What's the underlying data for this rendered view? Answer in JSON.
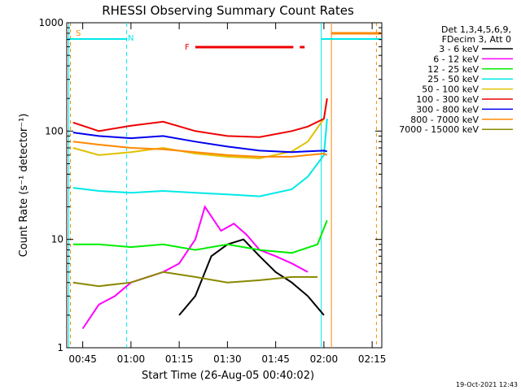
{
  "chart_data": {
    "type": "line",
    "title": "RHESSI Observing Summary Count Rates",
    "xlabel": "Start Time (26-Aug-05 00:40:02)",
    "ylabel": "Count Rate (s⁻¹ detector⁻¹)",
    "y_scale": "log",
    "ylim": [
      1,
      1000
    ],
    "xlim": [
      "00:40:02",
      "02:18:00"
    ],
    "x_ticks": [
      "00:45",
      "01:00",
      "01:15",
      "01:30",
      "01:45",
      "02:00",
      "02:15"
    ],
    "y_ticks": [
      "1",
      "10",
      "100",
      "1000"
    ],
    "legend_header": [
      "Det 1,3,4,5,6,9,",
      "FDecim 3, Att 0"
    ],
    "legend_position": "top-right",
    "series": [
      {
        "name": "3 - 6 keV",
        "color": "#000000",
        "x": [
          "01:15",
          "01:20",
          "01:25",
          "01:30",
          "01:35",
          "01:40",
          "01:45",
          "01:50",
          "01:55",
          "02:00"
        ],
        "values": [
          2,
          3,
          7,
          9,
          10,
          7,
          5,
          4,
          3,
          2
        ]
      },
      {
        "name": "6 - 12 keV",
        "color": "#ff00ff",
        "x": [
          "00:45",
          "00:50",
          "00:55",
          "01:00",
          "01:10",
          "01:15",
          "01:20",
          "01:23",
          "01:28",
          "01:32",
          "01:36",
          "01:40",
          "01:45",
          "01:50",
          "01:55"
        ],
        "values": [
          1.5,
          2.5,
          3,
          4,
          5,
          6,
          10,
          20,
          12,
          14,
          11,
          8,
          7,
          6,
          5
        ]
      },
      {
        "name": "12 - 25 keV",
        "color": "#00ee00",
        "x": [
          "00:42",
          "00:50",
          "01:00",
          "01:10",
          "01:20",
          "01:30",
          "01:40",
          "01:50",
          "01:58",
          "02:01"
        ],
        "values": [
          9,
          9,
          8.5,
          9,
          8,
          9,
          8,
          7.5,
          9,
          15
        ]
      },
      {
        "name": "25 - 50 keV",
        "color": "#00e8e8",
        "x": [
          "00:42",
          "00:50",
          "01:00",
          "01:10",
          "01:20",
          "01:30",
          "01:40",
          "01:50",
          "01:55",
          "02:00",
          "02:01"
        ],
        "values": [
          30,
          28,
          27,
          28,
          27,
          26,
          25,
          29,
          38,
          60,
          130
        ]
      },
      {
        "name": "50 - 100 keV",
        "color": "#e0c000",
        "x": [
          "00:42",
          "00:50",
          "01:00",
          "01:10",
          "01:20",
          "01:30",
          "01:40",
          "01:50",
          "01:55",
          "02:00",
          "02:01"
        ],
        "values": [
          70,
          60,
          64,
          70,
          62,
          58,
          56,
          65,
          80,
          130,
          200
        ]
      },
      {
        "name": "100 - 300 keV",
        "color": "#ee0000",
        "x": [
          "00:42",
          "00:50",
          "01:00",
          "01:10",
          "01:20",
          "01:30",
          "01:40",
          "01:50",
          "01:55",
          "02:00",
          "02:01"
        ],
        "values": [
          120,
          100,
          112,
          122,
          100,
          90,
          88,
          100,
          110,
          130,
          200
        ]
      },
      {
        "name": "300 - 800 keV",
        "color": "#0000ee",
        "x": [
          "00:42",
          "00:50",
          "01:00",
          "01:10",
          "01:20",
          "01:30",
          "01:40",
          "01:50",
          "01:55",
          "02:00",
          "02:01"
        ],
        "values": [
          97,
          90,
          86,
          90,
          80,
          72,
          66,
          64,
          65,
          66,
          65
        ]
      },
      {
        "name": "800 - 7000 keV",
        "color": "#ff8800",
        "x": [
          "00:42",
          "00:50",
          "01:00",
          "01:10",
          "01:20",
          "01:30",
          "01:40",
          "01:50",
          "01:55",
          "02:00",
          "02:01"
        ],
        "values": [
          80,
          75,
          70,
          68,
          64,
          60,
          58,
          58,
          60,
          62,
          60
        ]
      },
      {
        "name": "7000 - 15000 keV",
        "color": "#888800",
        "x": [
          "00:42",
          "00:50",
          "01:00",
          "01:10",
          "01:20",
          "01:30",
          "01:40",
          "01:50",
          "01:58"
        ],
        "values": [
          4,
          3.7,
          4,
          5,
          4.5,
          4,
          4.2,
          4.5,
          4.5
        ]
      }
    ],
    "annotations": [
      {
        "label": "S",
        "color": "#ff8800"
      },
      {
        "label": "N",
        "color": "#00e8e8"
      },
      {
        "label": "F",
        "color": "#ee0000"
      }
    ]
  },
  "footer": {
    "date": "19-Oct-2021 12:43"
  }
}
